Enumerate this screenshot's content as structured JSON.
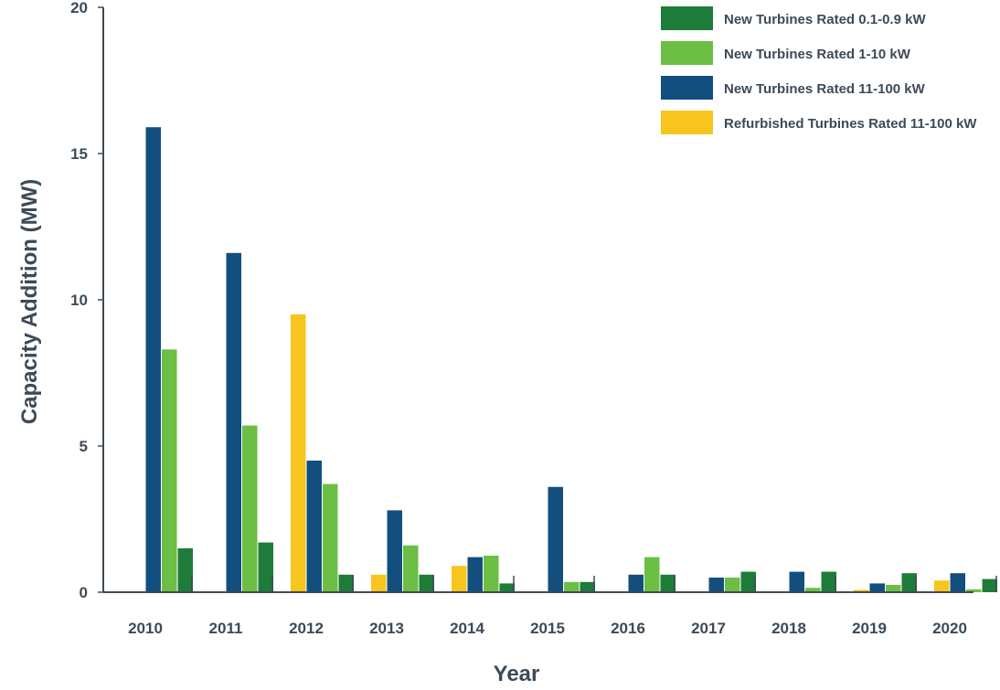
{
  "chart_data": {
    "type": "bar",
    "categories": [
      "2010",
      "2011",
      "2012",
      "2013",
      "2014",
      "2015",
      "2016",
      "2017",
      "2018",
      "2019",
      "2020"
    ],
    "series": [
      {
        "name": "New Turbines Rated 0.1-0.9 kW",
        "color": "#1e7c3a",
        "values": [
          1.5,
          1.7,
          0.6,
          0.6,
          0.3,
          0.35,
          0.6,
          0.7,
          0.7,
          0.65,
          0.45
        ]
      },
      {
        "name": "New Turbines Rated 1-10 kW",
        "color": "#6cbe45",
        "values": [
          8.3,
          5.7,
          3.7,
          1.6,
          1.25,
          0.35,
          1.2,
          0.5,
          0.15,
          0.25,
          0.1
        ]
      },
      {
        "name": "New Turbines Rated 11-100 kW",
        "color": "#124f7e",
        "values": [
          15.9,
          11.6,
          4.5,
          2.8,
          1.2,
          3.6,
          0.6,
          0.5,
          0.7,
          0.3,
          0.65
        ]
      },
      {
        "name": "Refurbished Turbines Rated 11-100 kW",
        "color": "#f7c51e",
        "values": [
          0,
          0,
          9.5,
          0.6,
          0.9,
          0,
          0,
          0,
          0,
          0.08,
          0.4
        ]
      }
    ],
    "bar_order": [
      "Refurbished Turbines Rated 11-100 kW",
      "New Turbines Rated 11-100 kW",
      "New Turbines Rated 1-10 kW",
      "New Turbines Rated 0.1-0.9 kW"
    ],
    "title": "",
    "xlabel": "Year",
    "ylabel": "Capacity Addition (MW)",
    "ylim": [
      0,
      20
    ],
    "yticks": [
      "0",
      "5",
      "10",
      "15",
      "20"
    ],
    "grid": false,
    "legend_position": "top-right"
  }
}
